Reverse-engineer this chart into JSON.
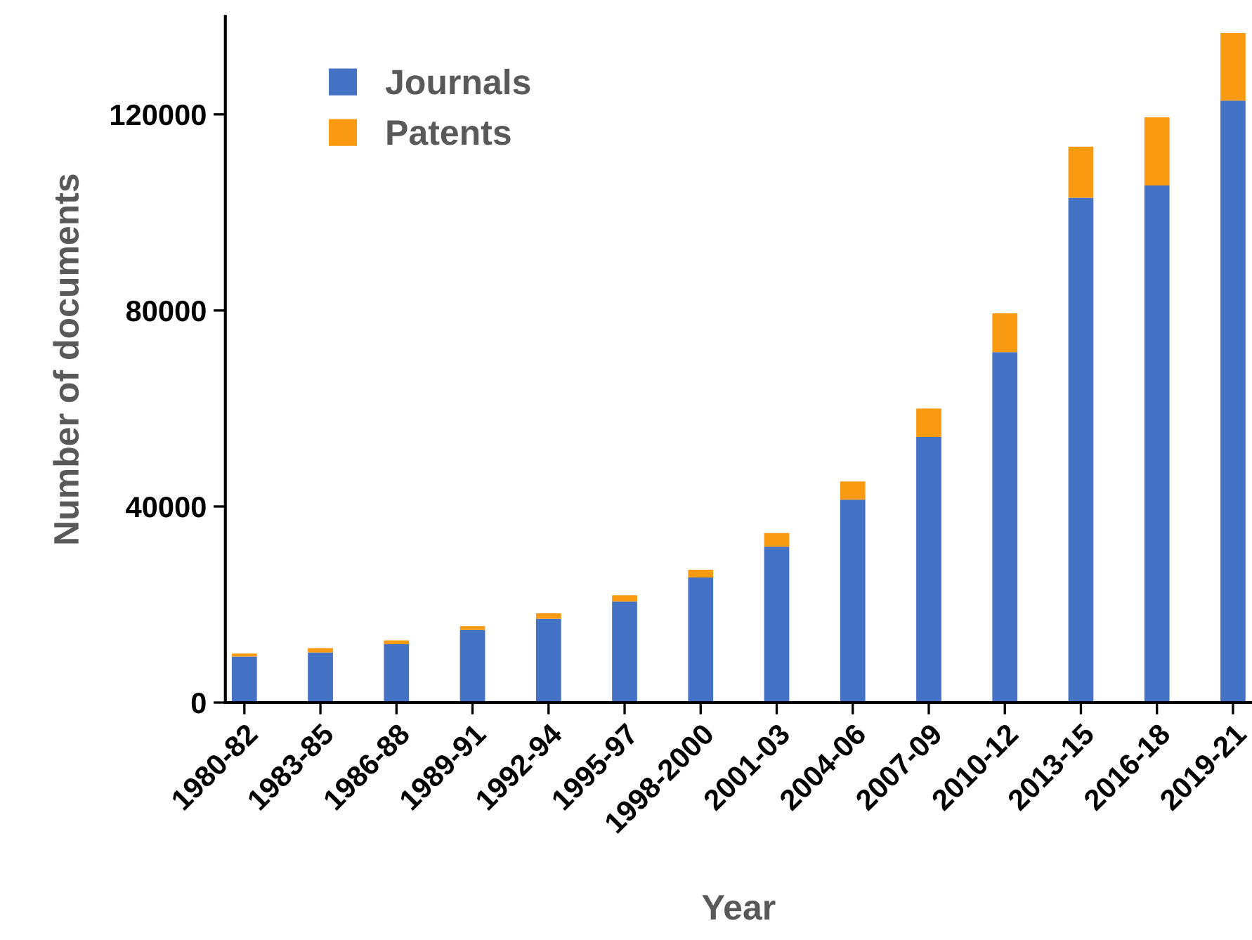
{
  "chart_data": {
    "type": "bar",
    "stacked": true,
    "xlabel": "Year",
    "ylabel": "Number of documents",
    "categories": [
      "1980-82",
      "1983-85",
      "1986-88",
      "1989-91",
      "1992-94",
      "1995-97",
      "1998-2000",
      "2001-03",
      "2004-06",
      "2007-09",
      "2010-12",
      "2013-15",
      "2016-18",
      "2019-21"
    ],
    "series": [
      {
        "name": "Journals",
        "color": "#4472c4",
        "values": [
          9400,
          10200,
          11900,
          14800,
          17100,
          20600,
          25500,
          31800,
          41400,
          54200,
          71500,
          103000,
          105500,
          122800
        ]
      },
      {
        "name": "Patents",
        "color": "#fa9a10",
        "values": [
          600,
          900,
          800,
          800,
          1100,
          1300,
          1600,
          2800,
          3700,
          5800,
          7900,
          10400,
          13900,
          13800
        ]
      }
    ],
    "ylim": [
      0,
      140000
    ],
    "yticks": [
      0,
      40000,
      80000,
      120000
    ],
    "grid": false,
    "legend": "top left"
  }
}
